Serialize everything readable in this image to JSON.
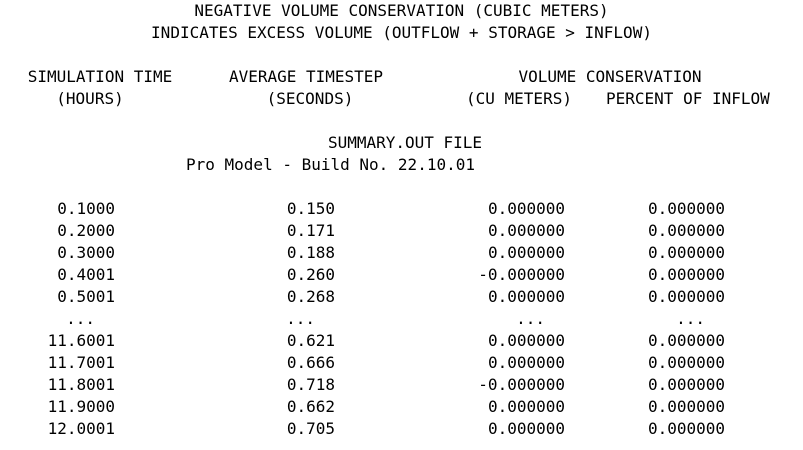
{
  "header": {
    "title_line1": "NEGATIVE VOLUME CONSERVATION (CUBIC METERS)",
    "title_line2": "INDICATES EXCESS VOLUME (OUTFLOW + STORAGE > INFLOW)"
  },
  "columns": {
    "sim_time": {
      "label": "SIMULATION TIME",
      "unit": "(HOURS)"
    },
    "avg_timestep": {
      "label": "AVERAGE TIMESTEP",
      "unit": "(SECONDS)"
    },
    "volume_conservation": {
      "label": "VOLUME CONSERVATION"
    },
    "cu_meters": {
      "unit": "(CU METERS)"
    },
    "percent_inflow": {
      "unit": "PERCENT OF INFLOW"
    }
  },
  "file_info": {
    "name": "SUMMARY.OUT FILE",
    "build": "Pro Model - Build No. 22.10.01"
  },
  "rows": [
    {
      "time": "0.1000",
      "timestep": "0.150",
      "volume": "0.000000",
      "percent": "0.000000"
    },
    {
      "time": "0.2000",
      "timestep": "0.171",
      "volume": "0.000000",
      "percent": "0.000000"
    },
    {
      "time": "0.3000",
      "timestep": "0.188",
      "volume": "0.000000",
      "percent": "0.000000"
    },
    {
      "time": "0.4001",
      "timestep": "0.260",
      "volume": "-0.000000",
      "percent": "0.000000"
    },
    {
      "time": "0.5001",
      "timestep": "0.268",
      "volume": "0.000000",
      "percent": "0.000000"
    },
    {
      "time": "...",
      "timestep": "...",
      "volume": "...",
      "percent": "..."
    },
    {
      "time": "11.6001",
      "timestep": "0.621",
      "volume": "0.000000",
      "percent": "0.000000"
    },
    {
      "time": "11.7001",
      "timestep": "0.666",
      "volume": "0.000000",
      "percent": "0.000000"
    },
    {
      "time": "11.8001",
      "timestep": "0.718",
      "volume": "-0.000000",
      "percent": "0.000000"
    },
    {
      "time": "11.9000",
      "timestep": "0.662",
      "volume": "0.000000",
      "percent": "0.000000"
    },
    {
      "time": "12.0001",
      "timestep": "0.705",
      "volume": "0.000000",
      "percent": "0.000000"
    }
  ]
}
